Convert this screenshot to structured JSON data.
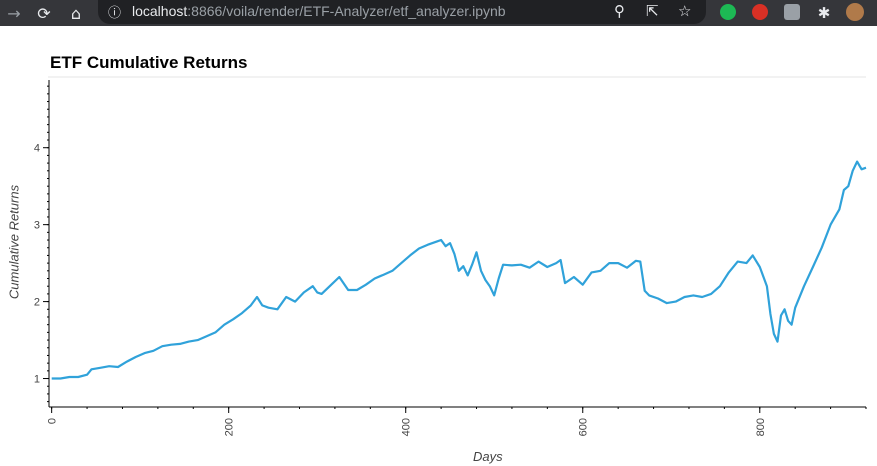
{
  "browser": {
    "url_host": "localhost",
    "url_path": ":8866/voila/render/ETF-Analyzer/etf_analyzer.ipynb",
    "back_icon": "back-arrow-icon",
    "reload_icon": "reload-icon",
    "home_icon": "home-icon",
    "info_icon": "info-icon",
    "zoom_icon": "zoom-icon",
    "share_icon": "share-icon",
    "bookmark_icon": "star-icon",
    "extensions": [
      "green-extension-icon",
      "red-hand-extension-icon",
      "gray-extension-icon",
      "puzzle-icon",
      "profile-avatar"
    ]
  },
  "chart_data": {
    "type": "line",
    "title": "ETF Cumulative Returns",
    "xlabel": "Days",
    "ylabel": "Cumulative Returns",
    "xlim": [
      -3,
      920
    ],
    "ylim": [
      0.63,
      4.88
    ],
    "x_ticks": [
      0,
      200,
      400,
      600,
      800
    ],
    "y_ticks": [
      1,
      2,
      3,
      4
    ],
    "grid": false,
    "color": "#30a2da",
    "series": [
      {
        "x": [
          0,
          10,
          20,
          30,
          40,
          45,
          55,
          65,
          75,
          85,
          95,
          105,
          115,
          125,
          135,
          145,
          155,
          165,
          175,
          185,
          195,
          205,
          215,
          225,
          232,
          238,
          245,
          255,
          265,
          275,
          285,
          295,
          300,
          305,
          315,
          325,
          335,
          345,
          355,
          365,
          375,
          385,
          395,
          405,
          415,
          425,
          435,
          440,
          445,
          450,
          455,
          460,
          465,
          470,
          475,
          480,
          485,
          490,
          495,
          500,
          505,
          510,
          520,
          530,
          540,
          550,
          560,
          570,
          575,
          580,
          590,
          600,
          610,
          620,
          630,
          640,
          650,
          660,
          665,
          670,
          675,
          685,
          695,
          705,
          715,
          725,
          735,
          745,
          755,
          765,
          775,
          785,
          792,
          800,
          808,
          812,
          816,
          820,
          824,
          828,
          832,
          836,
          840,
          850,
          860,
          870,
          880,
          890,
          895,
          900,
          905,
          910,
          915,
          920
        ],
        "y": [
          1.0,
          1.0,
          1.02,
          1.02,
          1.05,
          1.12,
          1.14,
          1.16,
          1.15,
          1.22,
          1.28,
          1.33,
          1.36,
          1.42,
          1.44,
          1.45,
          1.48,
          1.5,
          1.55,
          1.6,
          1.7,
          1.77,
          1.85,
          1.95,
          2.06,
          1.95,
          1.92,
          1.9,
          2.06,
          2.0,
          2.12,
          2.2,
          2.12,
          2.1,
          2.21,
          2.32,
          2.15,
          2.15,
          2.22,
          2.3,
          2.35,
          2.4,
          2.5,
          2.6,
          2.69,
          2.74,
          2.78,
          2.8,
          2.72,
          2.76,
          2.62,
          2.4,
          2.46,
          2.34,
          2.48,
          2.64,
          2.4,
          2.28,
          2.2,
          2.08,
          2.3,
          2.48,
          2.47,
          2.48,
          2.44,
          2.52,
          2.45,
          2.5,
          2.54,
          2.24,
          2.32,
          2.22,
          2.38,
          2.4,
          2.5,
          2.5,
          2.44,
          2.53,
          2.52,
          2.14,
          2.08,
          2.04,
          1.98,
          2.0,
          2.06,
          2.08,
          2.06,
          2.1,
          2.2,
          2.38,
          2.52,
          2.5,
          2.6,
          2.45,
          2.2,
          1.84,
          1.58,
          1.48,
          1.82,
          1.9,
          1.75,
          1.7,
          1.92,
          2.2,
          2.45,
          2.7,
          3.0,
          3.2,
          3.45,
          3.5,
          3.7,
          3.82,
          3.72,
          3.74
        ]
      }
    ]
  }
}
